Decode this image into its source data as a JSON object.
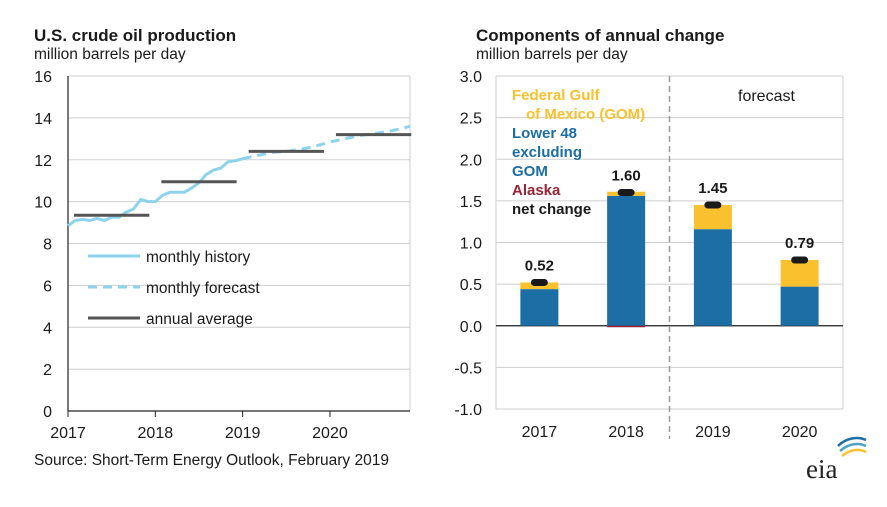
{
  "left_chart": {
    "title": "U.S. crude oil production",
    "subtitle": "million barrels per day",
    "legend": [
      "monthly history",
      "monthly forecast",
      "annual average"
    ]
  },
  "right_chart": {
    "title": "Components of annual change",
    "subtitle": "million barrels per day",
    "forecast_label": "forecast",
    "legend": [
      "Federal Gulf",
      "of Mexico (GOM)",
      "Lower 48",
      "excluding",
      "GOM",
      "Alaska",
      "net change"
    ]
  },
  "source": "Source: Short-Term Energy Outlook, February 2019",
  "logo": "eia",
  "colors": {
    "history": "#8ed3ee",
    "forecast": "#8ed3ee",
    "annual": "#555555",
    "gom": "#f9c12e",
    "lower48": "#1c6ea4",
    "alaska": "#9b2335",
    "net": "#1a1a1a",
    "grid": "#cfcfcf"
  },
  "chart_data": [
    {
      "type": "line",
      "title": "U.S. crude oil production",
      "ylabel": "million barrels per day",
      "ylim": [
        0,
        16
      ],
      "yticks": [
        "0",
        "2",
        "4",
        "6",
        "8",
        "10",
        "12",
        "14",
        "16"
      ],
      "xticks": [
        "2017",
        "2018",
        "2019",
        "2020"
      ],
      "x_range": [
        "2017-01",
        "2020-12"
      ],
      "grid": true,
      "legend_position": "left",
      "series": [
        {
          "name": "monthly history",
          "style": "solid",
          "x": [
            "2017-01",
            "2017-02",
            "2017-03",
            "2017-04",
            "2017-05",
            "2017-06",
            "2017-07",
            "2017-08",
            "2017-09",
            "2017-10",
            "2017-11",
            "2017-12",
            "2018-01",
            "2018-02",
            "2018-03",
            "2018-04",
            "2018-05",
            "2018-06",
            "2018-07",
            "2018-08",
            "2018-09",
            "2018-10",
            "2018-11",
            "2018-12",
            "2019-01"
          ],
          "y": [
            8.85,
            9.1,
            9.15,
            9.1,
            9.2,
            9.1,
            9.25,
            9.25,
            9.5,
            9.65,
            10.1,
            10.0,
            10.0,
            10.3,
            10.45,
            10.45,
            10.45,
            10.65,
            10.9,
            11.3,
            11.5,
            11.6,
            11.9,
            11.95,
            12.05
          ]
        },
        {
          "name": "monthly forecast",
          "style": "dashed",
          "x": [
            "2019-01",
            "2019-03",
            "2019-05",
            "2019-07",
            "2019-09",
            "2019-11",
            "2020-01",
            "2020-03",
            "2020-05",
            "2020-07",
            "2020-09",
            "2020-11",
            "2020-12"
          ],
          "y": [
            12.05,
            12.2,
            12.35,
            12.4,
            12.5,
            12.65,
            12.85,
            13.0,
            13.15,
            13.25,
            13.35,
            13.5,
            13.6
          ]
        },
        {
          "name": "annual average",
          "style": "step",
          "x": [
            "2017",
            "2018",
            "2019",
            "2020"
          ],
          "y": [
            9.35,
            10.95,
            12.4,
            13.2
          ]
        }
      ]
    },
    {
      "type": "bar",
      "title": "Components of annual change",
      "ylabel": "million barrels per day",
      "categories": [
        "2017",
        "2018",
        "2019",
        "2020"
      ],
      "ylim": [
        -1.0,
        3.0
      ],
      "yticks": [
        "3.0",
        "2.5",
        "2.0",
        "1.5",
        "1.0",
        "0.5",
        "0.0",
        "-0.5",
        "-1.0"
      ],
      "forecast_from": "2019",
      "series": [
        {
          "name": "Lower 48 excluding GOM",
          "values": [
            0.44,
            1.56,
            1.16,
            0.47
          ]
        },
        {
          "name": "Federal Gulf of Mexico (GOM)",
          "values": [
            0.08,
            0.05,
            0.29,
            0.32
          ]
        },
        {
          "name": "Alaska",
          "values": [
            0.0,
            -0.01,
            0.0,
            0.0
          ]
        },
        {
          "name": "net change",
          "values": [
            0.52,
            1.6,
            1.45,
            0.79
          ]
        }
      ],
      "data_labels": [
        "0.52",
        "1.60",
        "1.45",
        "0.79"
      ],
      "legend_position": "top-left"
    }
  ]
}
